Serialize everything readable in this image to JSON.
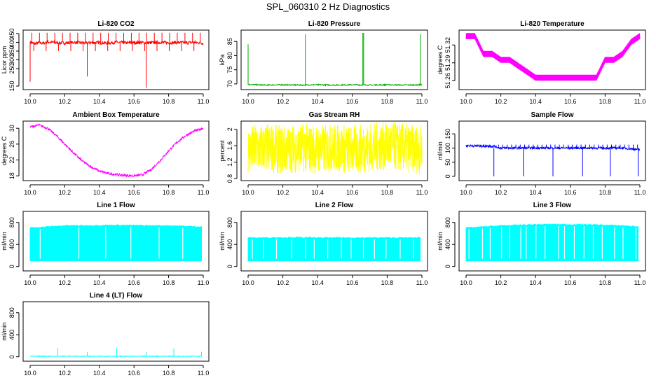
{
  "figure_title": "SPL_060310  2 Hz Diagnostics",
  "chart_data": [
    {
      "type": "line",
      "title": "Li-820 CO2",
      "ylabel": "Licor ppm",
      "color": "#ff0000",
      "xlim": [
        10.0,
        11.0
      ],
      "ylim": [
        130,
        470
      ],
      "xticks": [
        "10.0",
        "10.2",
        "10.4",
        "10.6",
        "10.8",
        "11.0"
      ],
      "yticks": [
        150,
        250,
        300,
        350,
        400,
        450
      ],
      "x": [
        10.0,
        10.03,
        10.05,
        10.08,
        10.1,
        10.15,
        10.2,
        10.25,
        10.3,
        10.33,
        10.35,
        10.4,
        10.45,
        10.5,
        10.55,
        10.6,
        10.65,
        10.67,
        10.7,
        10.75,
        10.8,
        10.85,
        10.9,
        10.95,
        11.0
      ],
      "y": [
        400,
        392,
        398,
        395,
        402,
        398,
        396,
        400,
        397,
        395,
        399,
        398,
        396,
        400,
        397,
        398,
        399,
        396,
        398,
        400,
        397,
        399,
        398,
        400,
        395
      ]
    },
    {
      "type": "line",
      "title": "Li-820 Pressure",
      "ylabel": "kPa",
      "color": "#00aa00",
      "xlim": [
        10.0,
        11.0
      ],
      "ylim": [
        68,
        89
      ],
      "xticks": [
        "10.0",
        "10.2",
        "10.4",
        "10.6",
        "10.8",
        "11.0"
      ],
      "yticks": [
        70,
        75,
        80,
        85
      ],
      "x": [
        10.0,
        10.1,
        10.2,
        10.3,
        10.4,
        10.5,
        10.6,
        10.7,
        10.8,
        10.9,
        11.0
      ],
      "y": [
        69.8,
        69.6,
        69.7,
        69.6,
        69.7,
        69.6,
        69.7,
        69.6,
        69.7,
        69.6,
        69.7
      ]
    },
    {
      "type": "line",
      "title": "Li-820 Temperature",
      "ylabel": "degrees C",
      "color": "#ff00ff",
      "xlim": [
        10.0,
        11.0
      ],
      "ylim": [
        51.245,
        51.345
      ],
      "xticks": [
        "10.0",
        "10.2",
        "10.4",
        "10.6",
        "10.8",
        "11.0"
      ],
      "yticks": [
        51.26,
        51.29,
        51.32
      ],
      "x": [
        10.0,
        10.05,
        10.1,
        10.15,
        10.2,
        10.25,
        10.3,
        10.35,
        10.4,
        10.45,
        10.5,
        10.55,
        10.6,
        10.65,
        10.7,
        10.75,
        10.8,
        10.85,
        10.9,
        10.95,
        11.0
      ],
      "y": [
        51.33,
        51.33,
        51.3,
        51.3,
        51.29,
        51.29,
        51.28,
        51.27,
        51.26,
        51.26,
        51.26,
        51.26,
        51.26,
        51.26,
        51.26,
        51.26,
        51.29,
        51.29,
        51.3,
        51.32,
        51.33
      ]
    },
    {
      "type": "line",
      "title": "Ambient Box Temperature",
      "ylabel": "degrees C",
      "color": "#ff00ff",
      "xlim": [
        10.0,
        11.0
      ],
      "ylim": [
        16.8,
        31.8
      ],
      "xticks": [
        "10.0",
        "10.2",
        "10.4",
        "10.6",
        "10.8",
        "11.0"
      ],
      "yticks": [
        18,
        22,
        26,
        30
      ],
      "x": [
        10.0,
        10.05,
        10.1,
        10.15,
        10.2,
        10.25,
        10.3,
        10.35,
        10.4,
        10.45,
        10.5,
        10.55,
        10.6,
        10.65,
        10.7,
        10.75,
        10.8,
        10.85,
        10.9,
        10.95,
        11.0
      ],
      "y": [
        30.3,
        30.8,
        30.0,
        28.2,
        26.0,
        23.8,
        21.8,
        20.3,
        19.2,
        18.6,
        18.3,
        18.1,
        18.0,
        18.3,
        19.6,
        21.8,
        24.3,
        26.5,
        28.2,
        29.3,
        30.0
      ]
    },
    {
      "type": "line",
      "title": "Gas Stream RH",
      "ylabel": "percent",
      "color": "#ffff00",
      "xlim": [
        10.0,
        11.0
      ],
      "ylim": [
        0.75,
        2.2
      ],
      "xticks": [
        "10.0",
        "10.2",
        "10.4",
        "10.6",
        "10.8",
        "11.0"
      ],
      "yticks": [
        0.8,
        1.2,
        1.6,
        2.0
      ],
      "x": [
        10.0,
        10.1,
        10.2,
        10.3,
        10.4,
        10.5,
        10.6,
        10.7,
        10.8,
        10.9,
        11.0
      ],
      "y": [
        1.5,
        1.55,
        1.5,
        1.55,
        1.5,
        1.55,
        1.5,
        1.55,
        1.6,
        1.55,
        1.5
      ]
    },
    {
      "type": "line",
      "title": "Sample Flow",
      "ylabel": "ml/min",
      "color": "#0000ff",
      "xlim": [
        10.0,
        11.0
      ],
      "ylim": [
        -15,
        195
      ],
      "xticks": [
        "10.0",
        "10.2",
        "10.4",
        "10.6",
        "10.8",
        "11.0"
      ],
      "yticks": [
        0,
        50,
        100,
        150
      ],
      "x": [
        10.0,
        10.16,
        10.2,
        10.33,
        10.4,
        10.5,
        10.6,
        10.67,
        10.7,
        10.83,
        10.9,
        10.99
      ],
      "y": [
        108,
        106,
        100,
        100,
        100,
        100,
        100,
        100,
        100,
        100,
        100,
        95
      ]
    },
    {
      "type": "line",
      "title": "Line 1 Flow",
      "ylabel": "ml/min",
      "color": "#00ffff",
      "xlim": [
        10.0,
        11.0
      ],
      "ylim": [
        -80,
        1000
      ],
      "xticks": [
        "10.0",
        "10.2",
        "10.4",
        "10.6",
        "10.8",
        "11.0"
      ],
      "yticks": [
        0,
        400,
        800
      ],
      "x": [
        10.0,
        10.1,
        10.2,
        10.3,
        10.4,
        10.5,
        10.6,
        10.7,
        10.8,
        10.9,
        10.99
      ],
      "y": [
        700,
        720,
        740,
        740,
        745,
        750,
        745,
        740,
        740,
        730,
        720
      ],
      "y_min": 100
    },
    {
      "type": "line",
      "title": "Line 2 Flow",
      "ylabel": "ml/min",
      "color": "#00ffff",
      "xlim": [
        10.0,
        11.0
      ],
      "ylim": [
        -80,
        1000
      ],
      "xticks": [
        "10.0",
        "10.2",
        "10.4",
        "10.6",
        "10.8",
        "11.0"
      ],
      "yticks": [
        0,
        400,
        800
      ],
      "x": [
        10.0,
        10.1,
        10.2,
        10.3,
        10.4,
        10.5,
        10.6,
        10.7,
        10.8,
        10.9,
        10.99
      ],
      "y": [
        520,
        520,
        525,
        525,
        520,
        520,
        520,
        520,
        520,
        520,
        520
      ],
      "y_min": 100
    },
    {
      "type": "line",
      "title": "Line 3 Flow",
      "ylabel": "ml/min",
      "color": "#00ffff",
      "xlim": [
        10.0,
        11.0
      ],
      "ylim": [
        -80,
        1000
      ],
      "xticks": [
        "10.0",
        "10.2",
        "10.4",
        "10.6",
        "10.8",
        "11.0"
      ],
      "yticks": [
        0,
        400,
        800
      ],
      "x": [
        10.0,
        10.1,
        10.2,
        10.3,
        10.4,
        10.5,
        10.6,
        10.7,
        10.8,
        10.9,
        10.99
      ],
      "y": [
        700,
        720,
        740,
        750,
        760,
        765,
        760,
        760,
        750,
        740,
        720
      ],
      "y_min": 100
    },
    {
      "type": "line",
      "title": "Line 4 (LT) Flow",
      "ylabel": "ml/min",
      "color": "#00ffff",
      "xlim": [
        10.0,
        11.0
      ],
      "ylim": [
        -80,
        1000
      ],
      "xticks": [
        "10.0",
        "10.2",
        "10.4",
        "10.6",
        "10.8",
        "11.0"
      ],
      "yticks": [
        0,
        400,
        800
      ],
      "x": [
        10.0,
        10.16,
        10.33,
        10.5,
        10.67,
        10.83,
        10.99
      ],
      "y": [
        10,
        10,
        10,
        10,
        10,
        10,
        10
      ]
    }
  ]
}
